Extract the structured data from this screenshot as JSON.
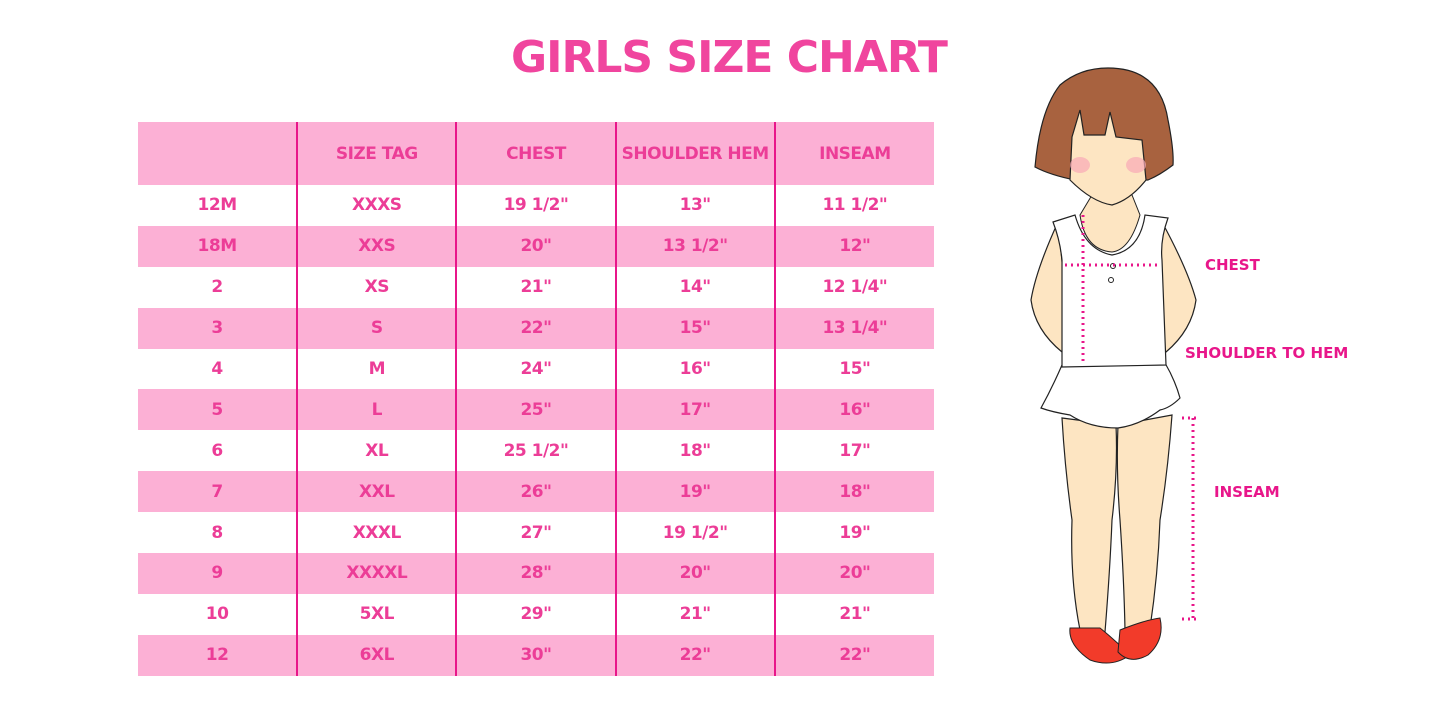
{
  "title": "GIRLS SIZE CHART",
  "table": {
    "headers": [
      "",
      "SIZE TAG",
      "CHEST",
      "SHOULDER HEM",
      "INSEAM"
    ],
    "rows": [
      [
        "12M",
        "XXXS",
        "19 1/2\"",
        "13\"",
        "11 1/2\""
      ],
      [
        "18M",
        "XXS",
        "20\"",
        "13 1/2\"",
        "12\""
      ],
      [
        "2",
        "XS",
        "21\"",
        "14\"",
        "12 1/4\""
      ],
      [
        "3",
        "S",
        "22\"",
        "15\"",
        "13 1/4\""
      ],
      [
        "4",
        "M",
        "24\"",
        "16\"",
        "15\""
      ],
      [
        "5",
        "L",
        "25\"",
        "17\"",
        "16\""
      ],
      [
        "6",
        "XL",
        "25 1/2\"",
        "18\"",
        "17\""
      ],
      [
        "7",
        "XXL",
        "26\"",
        "19\"",
        "18\""
      ],
      [
        "8",
        "XXXL",
        "27\"",
        "19 1/2\"",
        "19\""
      ],
      [
        "9",
        "XXXXL",
        "28\"",
        "20\"",
        "20\""
      ],
      [
        "10",
        "5XL",
        "29\"",
        "21\"",
        "21\""
      ],
      [
        "12",
        "6XL",
        "30\"",
        "22\"",
        "22\""
      ]
    ]
  },
  "figure": {
    "chest_label": "CHEST",
    "shoulder_label": "SHOULDER TO HEM",
    "inseam_label": "INSEAM"
  },
  "colors": {
    "accent": "#ec3d97",
    "row_pink": "#fcb0d5",
    "divider": "#e8168a"
  }
}
